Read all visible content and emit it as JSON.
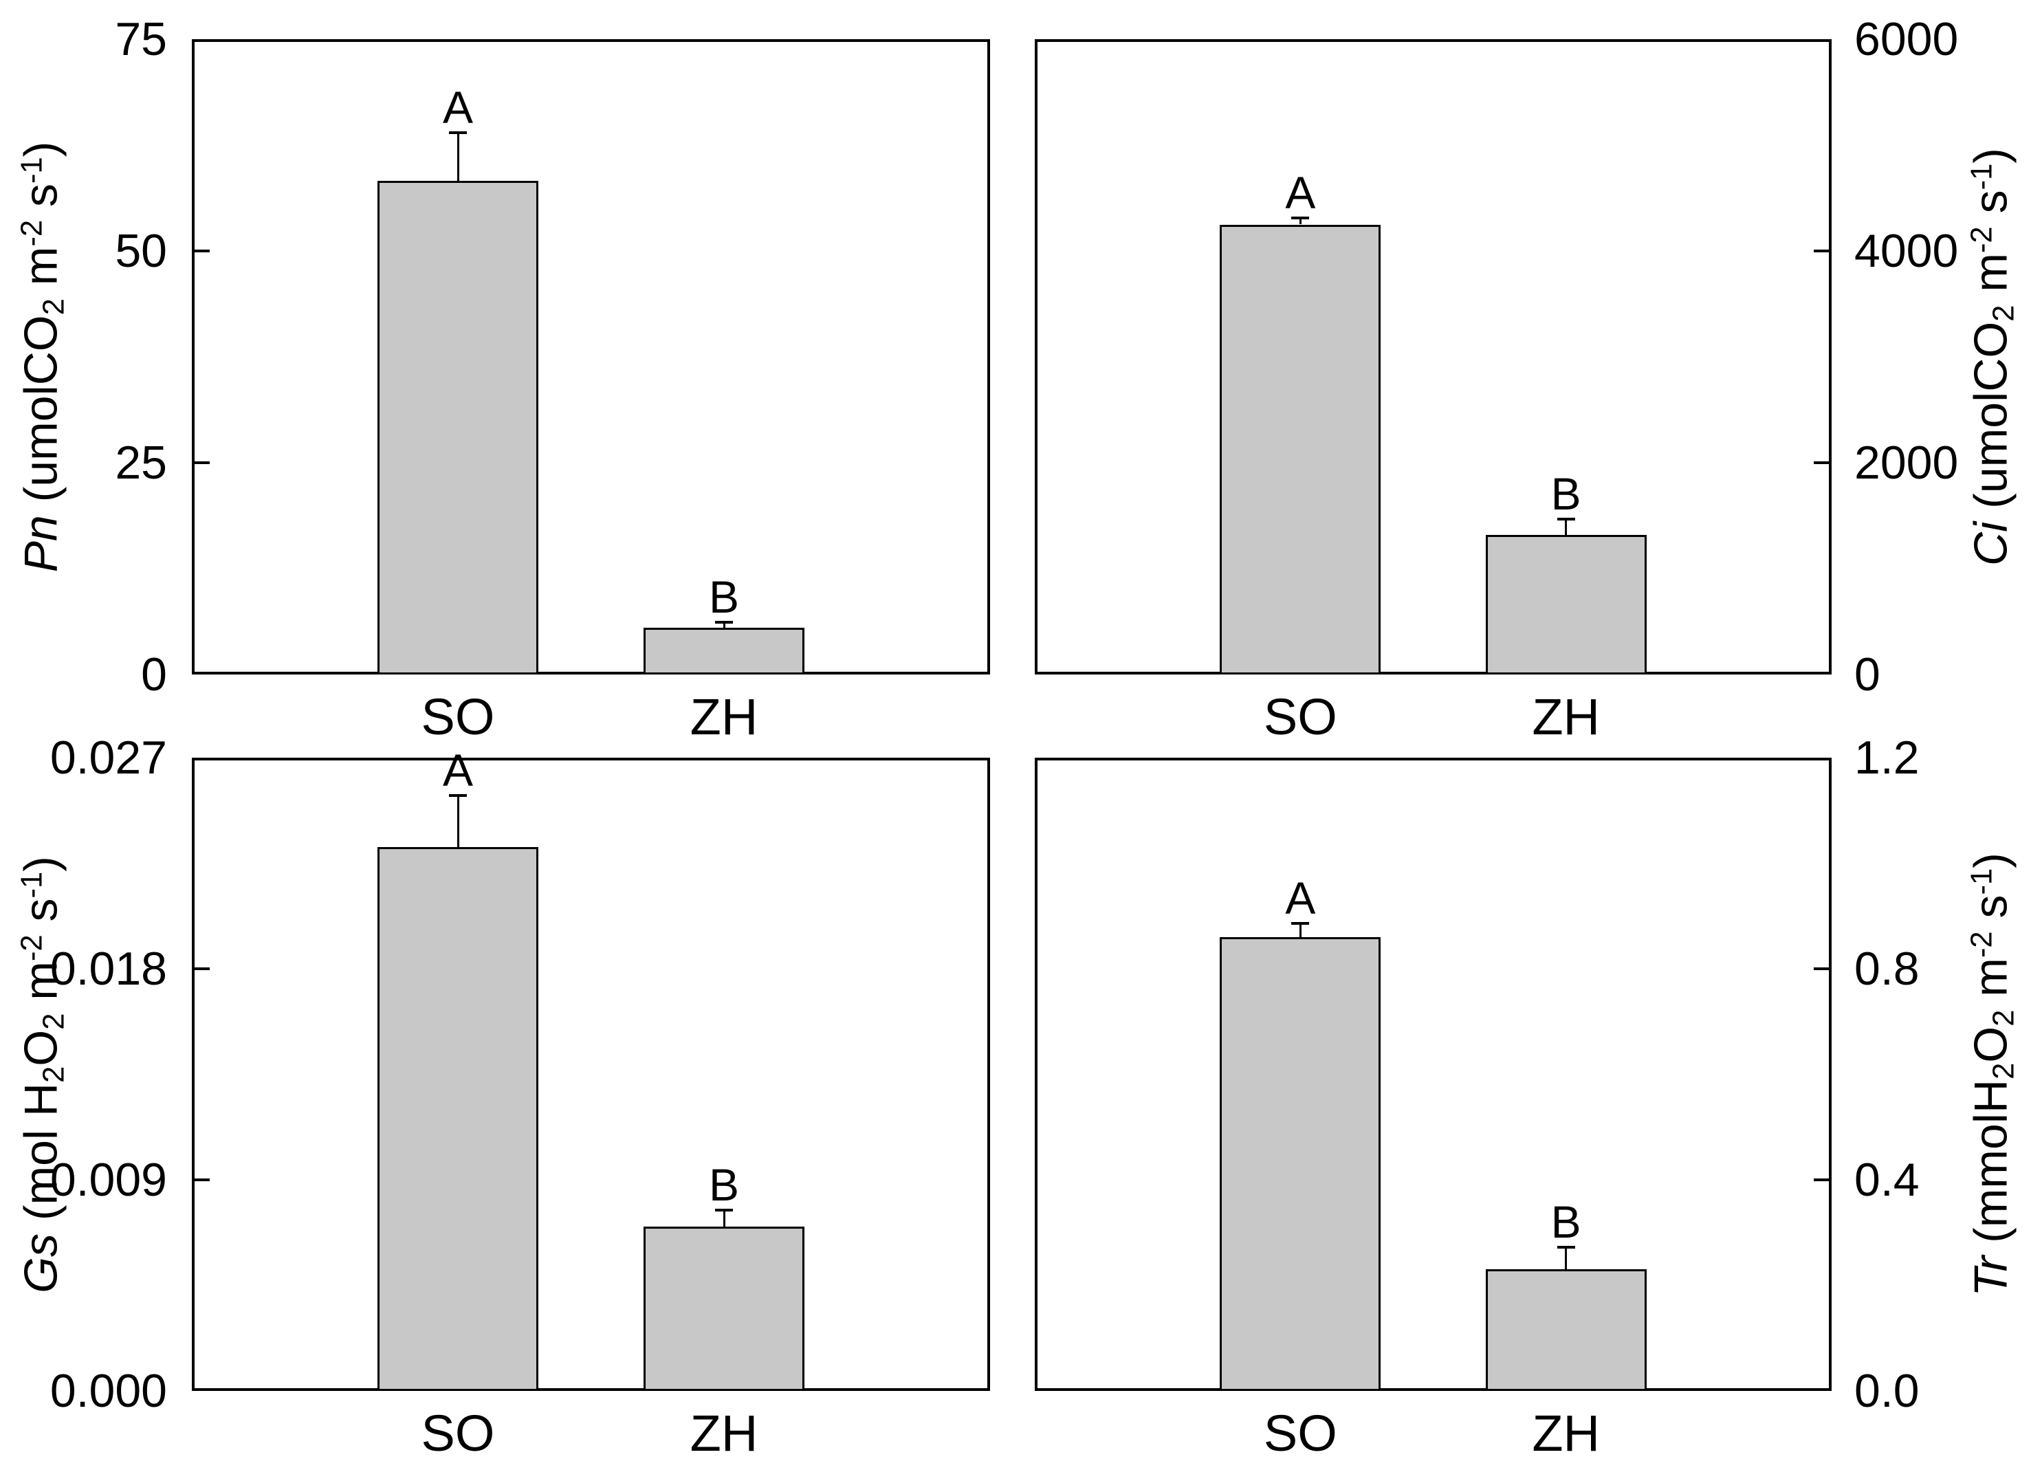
{
  "figure": {
    "background": "#ffffff",
    "bar_fill": "#c8c8c8",
    "line_color": "#000000",
    "text_color": "#000000"
  },
  "chart_data": [
    {
      "type": "bar",
      "panel": "top-left",
      "axis_side": "left",
      "title": "",
      "ylabel": "Pn (umolCO2 m-2 s-1)",
      "ylabel_segments": [
        {
          "t": "Pn",
          "s": "i"
        },
        {
          "t": " (umolCO",
          "s": ""
        },
        {
          "t": "2",
          "s": "sub"
        },
        {
          "t": " m",
          "s": ""
        },
        {
          "t": "-2",
          "s": "sup"
        },
        {
          "t": " s",
          "s": ""
        },
        {
          "t": "-1",
          "s": "sup"
        },
        {
          "t": ")",
          "s": ""
        }
      ],
      "categories": [
        "SO",
        "ZH"
      ],
      "values": [
        58.3,
        5.5
      ],
      "errors_plus": [
        5.7,
        0.7
      ],
      "sig_letters": [
        "A",
        "B"
      ],
      "ylim": [
        0,
        75
      ],
      "yticks": [
        0,
        25,
        50,
        75
      ],
      "ytick_labels": [
        "0",
        "25",
        "50",
        "75"
      ],
      "grid": "off",
      "legend": "none"
    },
    {
      "type": "bar",
      "panel": "top-right",
      "axis_side": "right",
      "title": "",
      "ylabel": "Ci (umolCO2 m-2 s-1)",
      "ylabel_segments": [
        {
          "t": "Ci",
          "s": "i"
        },
        {
          "t": " (umolCO",
          "s": ""
        },
        {
          "t": "2",
          "s": "sub"
        },
        {
          "t": " m",
          "s": ""
        },
        {
          "t": "-2",
          "s": "sup"
        },
        {
          "t": " s",
          "s": ""
        },
        {
          "t": "-1",
          "s": "sup"
        },
        {
          "t": ")",
          "s": ""
        }
      ],
      "categories": [
        "SO",
        "ZH"
      ],
      "values": [
        4250,
        1320
      ],
      "errors_plus": [
        60,
        150
      ],
      "sig_letters": [
        "A",
        "B"
      ],
      "ylim": [
        0,
        6000
      ],
      "yticks": [
        0,
        2000,
        4000,
        6000
      ],
      "ytick_labels": [
        "0",
        "2000",
        "4000",
        "6000"
      ],
      "grid": "off",
      "legend": "none"
    },
    {
      "type": "bar",
      "panel": "bottom-left",
      "axis_side": "left",
      "title": "",
      "ylabel": "Gs (mol H2O2 m-2 s-1)",
      "ylabel_segments": [
        {
          "t": "Gs",
          "s": "i"
        },
        {
          "t": " (mol H",
          "s": ""
        },
        {
          "t": "2",
          "s": "sub"
        },
        {
          "t": "O",
          "s": ""
        },
        {
          "t": "2",
          "s": "sub"
        },
        {
          "t": " m",
          "s": ""
        },
        {
          "t": "-2",
          "s": "sup"
        },
        {
          "t": " s",
          "s": ""
        },
        {
          "t": "-1",
          "s": "sup"
        },
        {
          "t": ")",
          "s": ""
        }
      ],
      "categories": [
        "SO",
        "ZH"
      ],
      "values": [
        0.0232,
        0.007
      ],
      "errors_plus": [
        0.0022,
        0.0007
      ],
      "sig_letters": [
        "A",
        "B"
      ],
      "ylim": [
        0,
        0.027
      ],
      "yticks": [
        0,
        0.009,
        0.018,
        0.027
      ],
      "ytick_labels": [
        "0.000",
        "0.009",
        "0.018",
        "0.027"
      ],
      "grid": "off",
      "legend": "none"
    },
    {
      "type": "bar",
      "panel": "bottom-right",
      "axis_side": "right",
      "title": "",
      "ylabel": "Tr (mmolH2O2 m-2 s-1)",
      "ylabel_segments": [
        {
          "t": "Tr",
          "s": "i"
        },
        {
          "t": " (mmolH",
          "s": ""
        },
        {
          "t": "2",
          "s": "sub"
        },
        {
          "t": "O",
          "s": ""
        },
        {
          "t": "2",
          "s": "sub"
        },
        {
          "t": " m",
          "s": ""
        },
        {
          "t": "-2",
          "s": "sup"
        },
        {
          "t": " s",
          "s": ""
        },
        {
          "t": "-1",
          "s": "sup"
        },
        {
          "t": ")",
          "s": ""
        }
      ],
      "categories": [
        "SO",
        "ZH"
      ],
      "values": [
        0.86,
        0.23
      ],
      "errors_plus": [
        0.026,
        0.042
      ],
      "sig_letters": [
        "A",
        "B"
      ],
      "ylim": [
        0,
        1.2
      ],
      "yticks": [
        0,
        0.4,
        0.8,
        1.2
      ],
      "ytick_labels": [
        "0.0",
        "0.4",
        "0.8",
        "1.2"
      ],
      "grid": "off",
      "legend": "none"
    }
  ]
}
